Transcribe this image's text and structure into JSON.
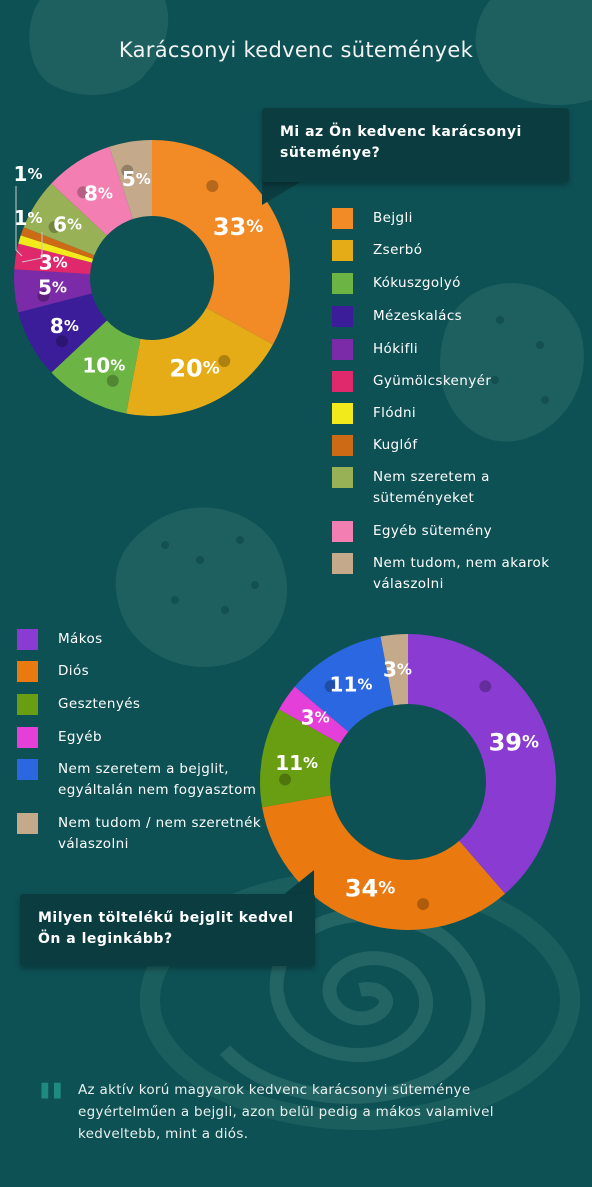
{
  "title": "Karácsonyi kedvenc sütemények",
  "chart_data": [
    {
      "type": "pie",
      "title": "Mi az Ön kedvenc karácsonyi süteménye?",
      "categories": [
        "Bejgli",
        "Zserbó",
        "Kókuszgolyó",
        "Mézeskalács",
        "Hókifli",
        "Gyümölcskenyér",
        "Flódni",
        "Kuglóf",
        "Nem szeretem a süteményeket",
        "Egyéb sütemény",
        "Nem tudom, nem akarok válaszolni"
      ],
      "values": [
        33,
        20,
        10,
        8,
        5,
        3,
        1,
        1,
        6,
        8,
        5
      ],
      "labels": [
        "33",
        "20",
        "10",
        "8",
        "5",
        "3",
        "1",
        "1",
        "6",
        "8",
        "5"
      ],
      "unit": "%",
      "colors": [
        "#f28a25",
        "#e6ac17",
        "#6cb545",
        "#3b1d9a",
        "#7b2aa8",
        "#e0286c",
        "#f2ea1a",
        "#cd6a16",
        "#98b056",
        "#f37fb2",
        "#c4a98a"
      ],
      "legend_position": "right"
    },
    {
      "type": "pie",
      "title": "Milyen töltelékű bejglit kedvel Ön a leginkább?",
      "categories": [
        "Mákos",
        "Diós",
        "Gesztenyés",
        "Egyéb",
        "Nem szeretem a bejglit, egyáltalán nem fogyasztom",
        "Nem tudom / nem szeretnék válaszolni"
      ],
      "values": [
        39,
        34,
        11,
        3,
        11,
        3
      ],
      "labels": [
        "39",
        "34",
        "11",
        "3",
        "11",
        "3"
      ],
      "unit": "%",
      "colors": [
        "#8a3bd1",
        "#ea7a10",
        "#6a9e12",
        "#e43fd8",
        "#2a67e0",
        "#c4a98a"
      ],
      "legend_position": "left"
    }
  ],
  "legend1": [
    {
      "label": "Bejgli",
      "color": "#f28a25"
    },
    {
      "label": "Zserbó",
      "color": "#e6ac17"
    },
    {
      "label": "Kókuszgolyó",
      "color": "#6cb545"
    },
    {
      "label": "Mézeskalács",
      "color": "#3b1d9a"
    },
    {
      "label": "Hókifli",
      "color": "#7b2aa8"
    },
    {
      "label": "Gyümölcskenyér",
      "color": "#e0286c"
    },
    {
      "label": "Flódni",
      "color": "#f2ea1a"
    },
    {
      "label": "Kuglóf",
      "color": "#cd6a16"
    },
    {
      "label": "Nem szeretem a süteményeket",
      "color": "#98b056"
    },
    {
      "label": "Egyéb sütemény",
      "color": "#f37fb2"
    },
    {
      "label": "Nem tudom, nem akarok válaszolni",
      "color": "#c4a98a"
    }
  ],
  "legend2": [
    {
      "label": "Mákos",
      "color": "#8a3bd1"
    },
    {
      "label": "Diós",
      "color": "#ea7a10"
    },
    {
      "label": "Gesztenyés",
      "color": "#6a9e12"
    },
    {
      "label": "Egyéb",
      "color": "#e43fd8"
    },
    {
      "label": "Nem szeretem a bejglit, egyáltalán nem fogyasztom",
      "color": "#2a67e0"
    },
    {
      "label": "Nem tudom / nem szeretnék válaszolni",
      "color": "#c4a98a"
    }
  ],
  "quote": "Az aktív korú magyarok kedvenc karácsonyi süteménye egyértelműen a bejgli, azon belül pedig a mákos valamivel kedveltebb, mint a diós.",
  "quote_mark": "\""
}
